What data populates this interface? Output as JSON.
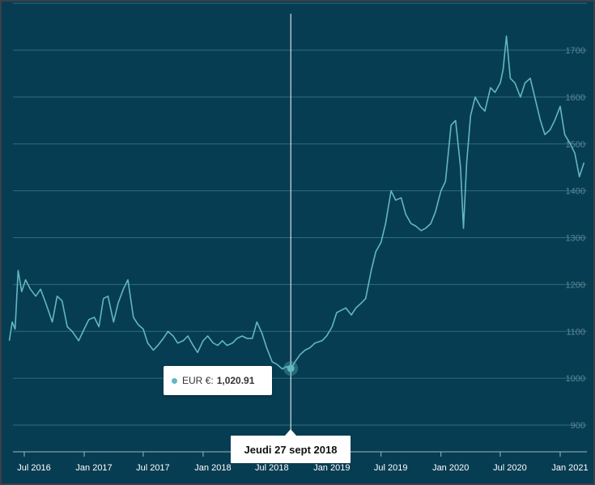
{
  "chart_data": {
    "type": "line",
    "title": "",
    "xlabel": "",
    "ylabel": "",
    "ylim": [
      870,
      1780
    ],
    "y_ticks": [
      900,
      1000,
      1100,
      1200,
      1300,
      1400,
      1500,
      1600,
      1700
    ],
    "x_ticks": [
      "Jul 2016",
      "Jan 2017",
      "Jul 2017",
      "Jan 2018",
      "Jul 2018",
      "Jan 2019",
      "Jul 2019",
      "Jan 2020",
      "Jul 2020",
      "Jan 2021"
    ],
    "grid": true,
    "line_color": "#62b7c0",
    "series": [
      {
        "points": [
          [
            "2016-05-16",
            1080
          ],
          [
            "2016-05-25",
            1120
          ],
          [
            "2016-06-03",
            1105
          ],
          [
            "2016-06-12",
            1230
          ],
          [
            "2016-06-23",
            1185
          ],
          [
            "2016-07-05",
            1210
          ],
          [
            "2016-07-20",
            1190
          ],
          [
            "2016-08-05",
            1175
          ],
          [
            "2016-08-20",
            1190
          ],
          [
            "2016-09-05",
            1160
          ],
          [
            "2016-09-25",
            1120
          ],
          [
            "2016-10-10",
            1175
          ],
          [
            "2016-10-25",
            1165
          ],
          [
            "2016-11-10",
            1110
          ],
          [
            "2016-11-25",
            1100
          ],
          [
            "2016-12-15",
            1080
          ],
          [
            "2017-01-01",
            1105
          ],
          [
            "2017-01-15",
            1125
          ],
          [
            "2017-02-01",
            1130
          ],
          [
            "2017-02-15",
            1110
          ],
          [
            "2017-03-01",
            1170
          ],
          [
            "2017-03-15",
            1175
          ],
          [
            "2017-04-01",
            1120
          ],
          [
            "2017-04-15",
            1160
          ],
          [
            "2017-05-01",
            1190
          ],
          [
            "2017-05-15",
            1210
          ],
          [
            "2017-06-01",
            1130
          ],
          [
            "2017-06-15",
            1115
          ],
          [
            "2017-07-01",
            1105
          ],
          [
            "2017-07-15",
            1075
          ],
          [
            "2017-08-01",
            1060
          ],
          [
            "2017-08-15",
            1070
          ],
          [
            "2017-09-01",
            1085
          ],
          [
            "2017-09-15",
            1100
          ],
          [
            "2017-10-01",
            1090
          ],
          [
            "2017-10-15",
            1075
          ],
          [
            "2017-11-01",
            1080
          ],
          [
            "2017-11-15",
            1090
          ],
          [
            "2017-12-01",
            1070
          ],
          [
            "2017-12-15",
            1055
          ],
          [
            "2018-01-01",
            1080
          ],
          [
            "2018-01-15",
            1090
          ],
          [
            "2018-02-01",
            1075
          ],
          [
            "2018-02-15",
            1070
          ],
          [
            "2018-03-01",
            1080
          ],
          [
            "2018-03-15",
            1070
          ],
          [
            "2018-04-01",
            1075
          ],
          [
            "2018-04-15",
            1085
          ],
          [
            "2018-05-01",
            1090
          ],
          [
            "2018-05-15",
            1085
          ],
          [
            "2018-06-01",
            1085
          ],
          [
            "2018-06-15",
            1120
          ],
          [
            "2018-07-01",
            1095
          ],
          [
            "2018-07-15",
            1065
          ],
          [
            "2018-08-01",
            1035
          ],
          [
            "2018-08-15",
            1030
          ],
          [
            "2018-09-01",
            1020
          ],
          [
            "2018-09-15",
            1025
          ],
          [
            "2018-09-27",
            1020.91
          ],
          [
            "2018-10-10",
            1035
          ],
          [
            "2018-10-25",
            1050
          ],
          [
            "2018-11-10",
            1060
          ],
          [
            "2018-11-25",
            1065
          ],
          [
            "2018-12-10",
            1075
          ],
          [
            "2019-01-01",
            1080
          ],
          [
            "2019-01-15",
            1090
          ],
          [
            "2019-02-01",
            1110
          ],
          [
            "2019-02-15",
            1140
          ],
          [
            "2019-03-01",
            1145
          ],
          [
            "2019-03-15",
            1150
          ],
          [
            "2019-04-01",
            1135
          ],
          [
            "2019-04-15",
            1150
          ],
          [
            "2019-05-01",
            1160
          ],
          [
            "2019-05-15",
            1170
          ],
          [
            "2019-06-01",
            1230
          ],
          [
            "2019-06-15",
            1270
          ],
          [
            "2019-07-01",
            1290
          ],
          [
            "2019-07-15",
            1330
          ],
          [
            "2019-08-01",
            1400
          ],
          [
            "2019-08-15",
            1380
          ],
          [
            "2019-09-01",
            1385
          ],
          [
            "2019-09-15",
            1350
          ],
          [
            "2019-10-01",
            1330
          ],
          [
            "2019-10-15",
            1325
          ],
          [
            "2019-11-01",
            1315
          ],
          [
            "2019-11-15",
            1320
          ],
          [
            "2019-12-01",
            1330
          ],
          [
            "2019-12-15",
            1355
          ],
          [
            "2020-01-01",
            1400
          ],
          [
            "2020-01-15",
            1420
          ],
          [
            "2020-02-01",
            1540
          ],
          [
            "2020-02-15",
            1550
          ],
          [
            "2020-03-01",
            1450
          ],
          [
            "2020-03-10",
            1320
          ],
          [
            "2020-03-20",
            1460
          ],
          [
            "2020-04-01",
            1560
          ],
          [
            "2020-04-15",
            1600
          ],
          [
            "2020-05-01",
            1580
          ],
          [
            "2020-05-15",
            1570
          ],
          [
            "2020-06-01",
            1620
          ],
          [
            "2020-06-15",
            1610
          ],
          [
            "2020-07-01",
            1630
          ],
          [
            "2020-07-10",
            1660
          ],
          [
            "2020-07-20",
            1730
          ],
          [
            "2020-08-01",
            1640
          ],
          [
            "2020-08-15",
            1630
          ],
          [
            "2020-09-01",
            1600
          ],
          [
            "2020-09-15",
            1630
          ],
          [
            "2020-10-01",
            1640
          ],
          [
            "2020-10-15",
            1600
          ],
          [
            "2020-11-01",
            1550
          ],
          [
            "2020-11-15",
            1520
          ],
          [
            "2020-12-01",
            1530
          ],
          [
            "2020-12-15",
            1550
          ],
          [
            "2021-01-01",
            1580
          ],
          [
            "2021-01-15",
            1520
          ],
          [
            "2021-02-01",
            1500
          ],
          [
            "2021-02-15",
            1480
          ],
          [
            "2021-03-01",
            1430
          ],
          [
            "2021-03-15",
            1460
          ]
        ]
      }
    ],
    "hover": {
      "date_label": "Jeudi 27 sept 2018",
      "series_label": "EUR €:",
      "value_label": "1,020.91",
      "date": "2018-09-27",
      "value": 1020.91
    }
  }
}
